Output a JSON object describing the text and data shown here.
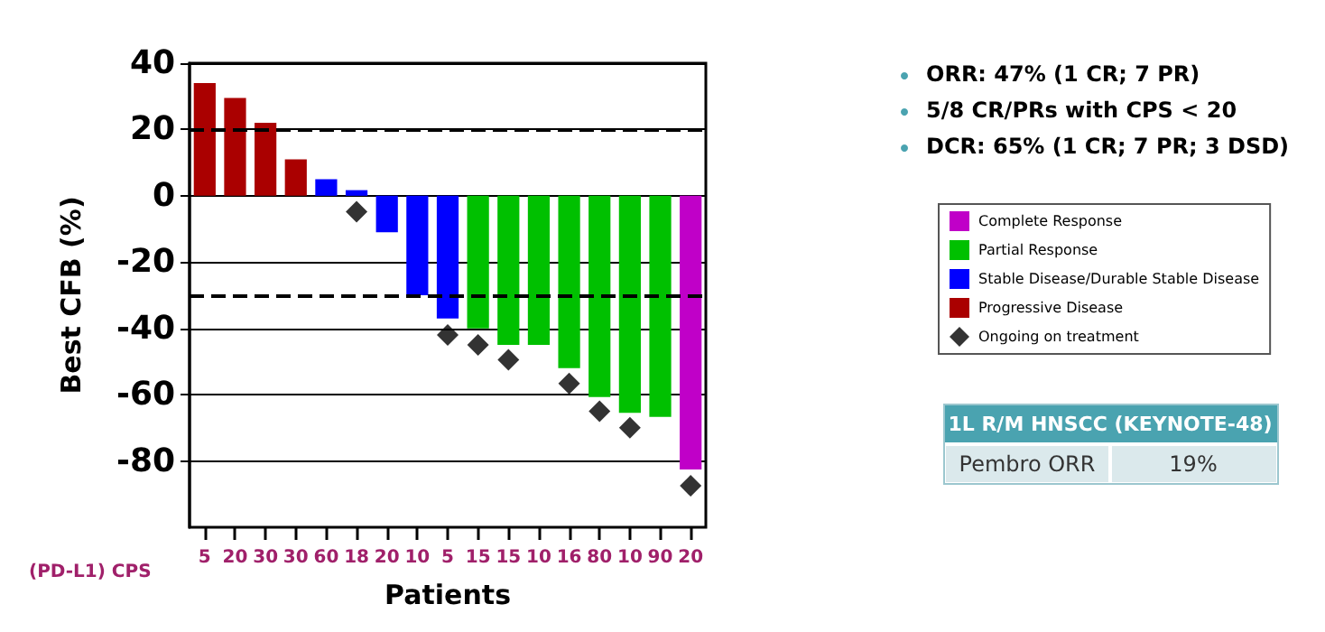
{
  "chart_data": {
    "type": "bar",
    "stacked": true,
    "ylabel": "Best CFB (%)",
    "xlabel": "Patients",
    "categories": [
      "5",
      "20",
      "30",
      "30",
      "60",
      "18",
      "20",
      "10",
      "5",
      "15",
      "15",
      "10",
      "16",
      "80",
      "10",
      "90",
      "20"
    ],
    "series": [
      {
        "name": "Complete Response",
        "color": "#c000c8",
        "values": [
          null,
          null,
          null,
          null,
          null,
          null,
          null,
          null,
          null,
          null,
          null,
          null,
          null,
          null,
          null,
          null,
          -82.6
        ]
      },
      {
        "name": "Partial Response",
        "color": "#00c000",
        "values": [
          null,
          null,
          null,
          null,
          null,
          null,
          null,
          null,
          null,
          -40,
          -45,
          -45,
          -52,
          -60.7,
          -65.5,
          -66.7,
          null
        ]
      },
      {
        "name": "Stable Disease/Durable Stable Disease",
        "color": "#0000ff",
        "values": [
          null,
          null,
          null,
          null,
          5,
          1.7,
          -11,
          -30,
          -37,
          null,
          null,
          null,
          null,
          null,
          null,
          null,
          null
        ]
      },
      {
        "name": "Progressive Disease",
        "color": "#aa0000",
        "values": [
          34,
          29.5,
          22,
          11,
          null,
          null,
          null,
          null,
          null,
          null,
          null,
          null,
          null,
          null,
          null,
          null,
          null
        ]
      },
      {
        "name": "Ongoing on treatment",
        "type": "scatter",
        "color": "#000000",
        "values": [
          null,
          null,
          null,
          null,
          null,
          -4.8,
          null,
          null,
          -42,
          -45,
          -49.5,
          null,
          -56.6,
          -65,
          -70,
          null,
          -87.5
        ]
      }
    ],
    "marker": "diamond",
    "ylim": [
      -100,
      40
    ],
    "yticks": [
      40,
      20,
      0,
      -20,
      -40,
      -60,
      -80
    ],
    "grid": "y",
    "legend": "right",
    "ref_lines": [
      {
        "axis": "y",
        "value": 20,
        "line_style": "dashed",
        "color": "#000000"
      },
      {
        "axis": "y",
        "value": -30,
        "line_style": "dashed",
        "color": "#000000"
      }
    ],
    "annotations": [
      "(PD-L1) CPS",
      "ORR: 47% (1 CR; 7 PR)",
      "5/8 CR/PRs with CPS < 20",
      "DCR: 65% (1 CR; 7 PR; 3 DSD)",
      "1L R/M HNSCC (KEYNOTE-48)",
      "Pembro ORR",
      "19%"
    ]
  }
}
